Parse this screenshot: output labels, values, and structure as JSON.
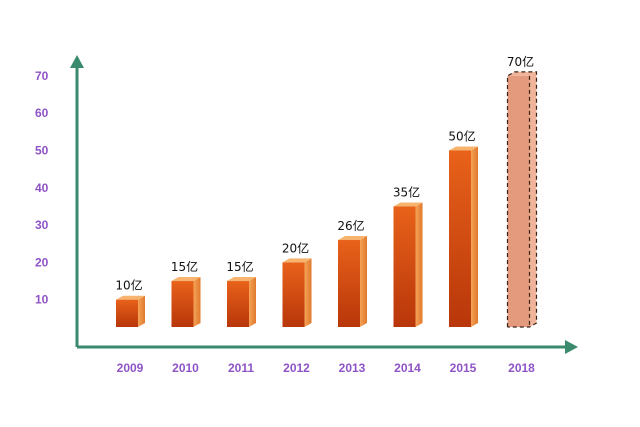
{
  "chart_data": {
    "type": "bar",
    "categories": [
      "2009",
      "2010",
      "2011",
      "2012",
      "2013",
      "2014",
      "2015",
      "2018"
    ],
    "values": [
      10,
      15,
      15,
      20,
      26,
      35,
      50,
      70
    ],
    "data_labels": [
      "10亿",
      "15亿",
      "15亿",
      "20亿",
      "26亿",
      "35亿",
      "50亿",
      "70亿"
    ],
    "title": "",
    "xlabel": "",
    "ylabel": "",
    "yticks": [
      "10",
      "20",
      "30",
      "40",
      "50",
      "60",
      "70"
    ],
    "ylim": [
      0,
      70
    ],
    "grid": false,
    "highlight": {
      "category": "2018",
      "style": "dashed-outline",
      "note": "projected"
    },
    "colors": {
      "bar_front_top": "#e8621a",
      "bar_front_bottom": "#b8360a",
      "bar_side": "#f39a4a",
      "bar_top": "#f7b46e",
      "highlight_front": "#e49a7c",
      "highlight_side": "#efb49a",
      "axis": "#3a8a6e",
      "tick_text": "#8e54c6"
    }
  }
}
